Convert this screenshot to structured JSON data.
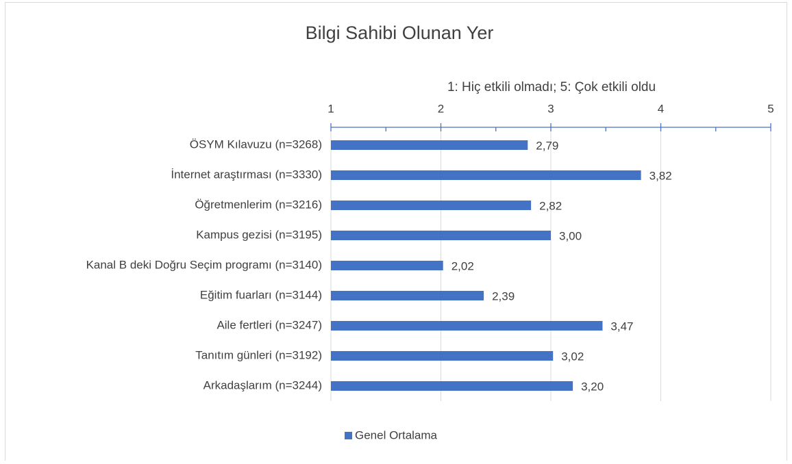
{
  "chart_data": {
    "type": "bar",
    "orientation": "horizontal",
    "title": "Bilgi Sahibi Olunan Yer",
    "xlabel": "1: Hiç etkili olmadı; 5: Çok etkili oldu",
    "categories": [
      "ÖSYM Kılavuzu (n=3268)",
      "İnternet araştırması (n=3330)",
      "Öğretmenlerim (n=3216)",
      "Kampus gezisi (n=3195)",
      "Kanal B deki Doğru Seçim programı (n=3140)",
      "Eğitim fuarları (n=3144)",
      "Aile fertleri (n=3247)",
      "Tanıtım günleri (n=3192)",
      "Arkadaşlarım (n=3244)"
    ],
    "series": [
      {
        "name": "Genel Ortalama",
        "color": "#4472c4",
        "values": [
          2.79,
          3.82,
          2.82,
          3.0,
          2.02,
          2.39,
          3.47,
          3.02,
          3.2
        ],
        "value_labels": [
          "2,79",
          "3,82",
          "2,82",
          "3,00",
          "2,02",
          "2,39",
          "3,47",
          "3,02",
          "3,20"
        ]
      }
    ],
    "xlim": [
      1,
      5
    ],
    "xticks": [
      1,
      2,
      3,
      4,
      5
    ],
    "xticks_minor": [
      1.5,
      2.5,
      3.5,
      4.5
    ],
    "grid": true,
    "legend": "bottom",
    "axis_position": "top"
  }
}
